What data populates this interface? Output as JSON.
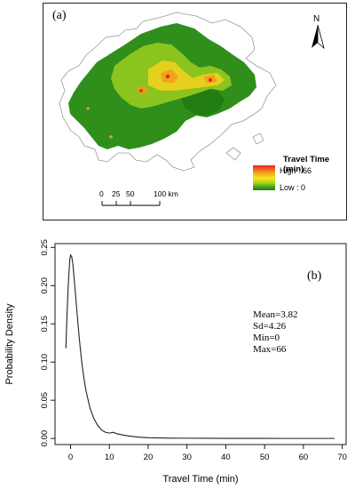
{
  "map": {
    "panel_label": "(a)",
    "north_label": "N",
    "legend": {
      "title": "Travel Time (min)",
      "high_label": "High : 66",
      "low_label": "Low : 0",
      "colors": [
        "#e8231c",
        "#f39a1f",
        "#f6ea1e",
        "#9fcf1f",
        "#3aa11a",
        "#217c12"
      ]
    },
    "scale_bar": {
      "tick_labels": [
        "0",
        "25",
        "50",
        "100 km"
      ]
    }
  },
  "chart_data": {
    "type": "line",
    "panel_label": "(b)",
    "xlabel": "Travel Time (min)",
    "ylabel": "Probability Density",
    "xlim": [
      -4,
      71
    ],
    "ylim": [
      -0.008,
      0.255
    ],
    "x_ticks": [
      0,
      10,
      20,
      30,
      40,
      50,
      60,
      70
    ],
    "y_ticks": [
      0.0,
      0.05,
      0.1,
      0.15,
      0.2,
      0.25
    ],
    "y_tick_labels": [
      "0.00",
      "0.05",
      "0.10",
      "0.15",
      "0.20",
      "0.25"
    ],
    "stats": [
      "Mean=3.82",
      "Sd=4.26",
      "Min=0",
      "Max=66"
    ],
    "series": [
      {
        "x": [
          -1.2,
          -1.0,
          -0.6,
          -0.2,
          0.0,
          0.3,
          0.6,
          1.0,
          1.5,
          2.0,
          2.5,
          3.0,
          3.5,
          4.0,
          5.0,
          6.0,
          7.0,
          8.0,
          9.0,
          10.0,
          11.0,
          12.0,
          14.0,
          16.0,
          18.0,
          20.0,
          23.0,
          26.0,
          30.0,
          35.0,
          40.0,
          45.0,
          50.0,
          55.0,
          60.0,
          65.0,
          68.0
        ],
        "y": [
          0.118,
          0.15,
          0.2,
          0.234,
          0.24,
          0.238,
          0.228,
          0.205,
          0.175,
          0.145,
          0.118,
          0.095,
          0.077,
          0.062,
          0.04,
          0.026,
          0.017,
          0.011,
          0.008,
          0.007,
          0.008,
          0.006,
          0.004,
          0.0025,
          0.0015,
          0.001,
          0.0006,
          0.0004,
          0.0003,
          0.0002,
          0.0001,
          0.0001,
          0.0001,
          0.0,
          0.0,
          0.0,
          0.0
        ]
      }
    ]
  }
}
